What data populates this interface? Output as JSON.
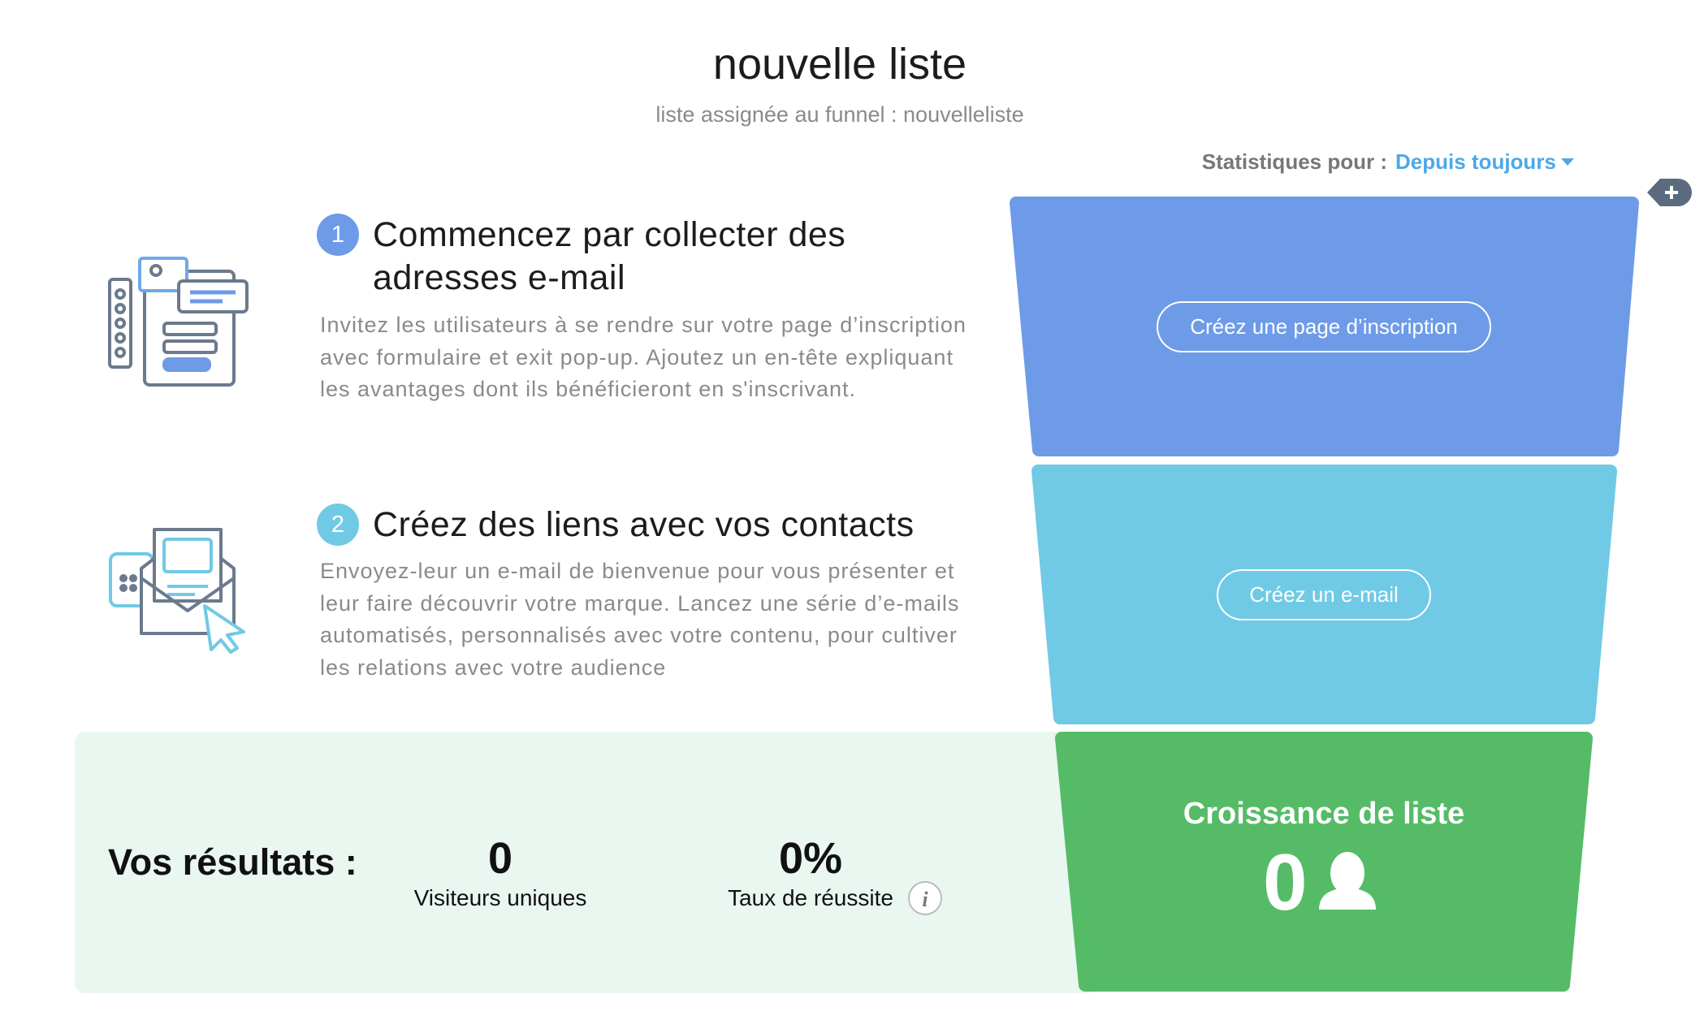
{
  "header": {
    "title": "nouvelle liste",
    "subtitle": "liste assignée au funnel : nouvelleliste"
  },
  "stats": {
    "label": "Statistiques pour :",
    "period": "Depuis toujours"
  },
  "steps": [
    {
      "number": "1",
      "title": "Commencez par collecter des adresses e-mail",
      "text": "Invitez les utilisateurs à se rendre sur votre page d’inscription avec formulaire et exit pop-up. Ajoutez un en-tête expliquant les avantages dont ils bénéficieront en s'inscrivant."
    },
    {
      "number": "2",
      "title": "Créez des liens avec vos contacts",
      "text": "Envoyez-leur un e-mail de bienvenue pour vous présenter et leur faire découvrir votre marque. Lancez une série d’e-mails automatisés, personnalisés avec votre contenu, pour cultiver les relations avec votre audience"
    }
  ],
  "funnel": {
    "buttons": [
      "Créez une page d’inscription",
      "Créez un e-mail"
    ],
    "growth_title": "Croissance de liste",
    "growth_value": "0"
  },
  "results": {
    "label": "Vos résultats :",
    "metrics": [
      {
        "value": "0",
        "label": "Visiteurs uniques"
      },
      {
        "value": "0%",
        "label": "Taux de réussite"
      }
    ]
  }
}
